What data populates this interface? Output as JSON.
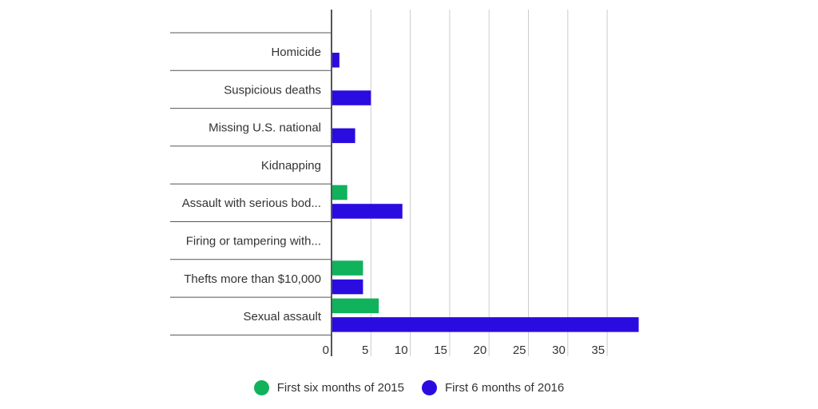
{
  "chart_data": {
    "type": "bar",
    "orientation": "horizontal",
    "categories": [
      "Homicide",
      "Suspicious deaths",
      "Missing U.S. national",
      "Kidnapping",
      "Assault with serious bod...",
      "Firing or tampering with...",
      "Thefts more than $10,000",
      "Sexual assault"
    ],
    "series": [
      {
        "name": "First six months of 2015",
        "color": "#10b25c",
        "values": [
          0,
          0,
          0,
          0,
          2,
          0,
          4,
          6
        ]
      },
      {
        "name": "First 6 months of 2016",
        "color": "#2a0ce0",
        "values": [
          1,
          5,
          3,
          0,
          9,
          0,
          4,
          39
        ]
      }
    ],
    "xticks": [
      0,
      5,
      10,
      15,
      20,
      25,
      30,
      35
    ],
    "xlim": [
      0,
      40
    ],
    "grid": true,
    "legend_position": "bottom"
  }
}
